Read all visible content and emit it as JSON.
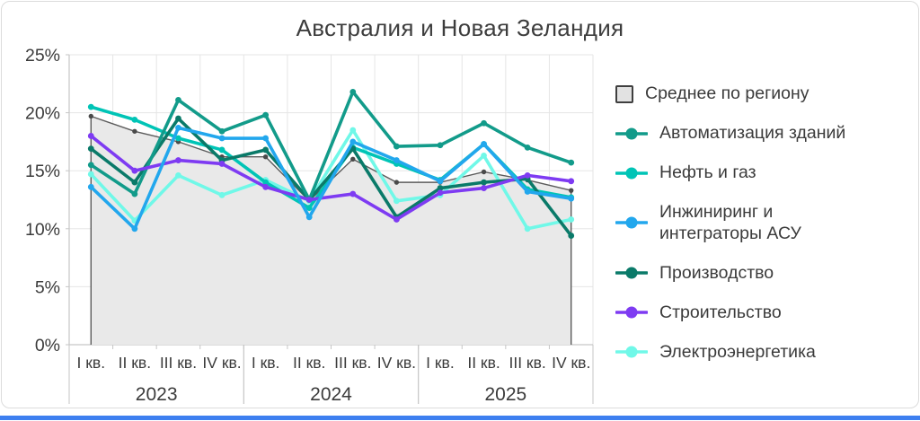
{
  "card": {
    "title": "Австралия и Новая Зеландия"
  },
  "axes": {
    "y_ticks": [
      "0%",
      "5%",
      "10%",
      "15%",
      "20%",
      "25%"
    ],
    "quarter_labels": [
      "I кв.",
      "II кв.",
      "III кв.",
      "IV кв."
    ],
    "years": [
      "2023",
      "2024",
      "2025"
    ]
  },
  "legend": {
    "items": [
      {
        "label": "Среднее по региону",
        "marker": "square",
        "color": "#e2e2e2",
        "border": "#3f3f3f"
      },
      {
        "label": "Автоматизация зданий",
        "marker": "line-dot",
        "color": "#129b8a"
      },
      {
        "label": "Нефть и газ",
        "marker": "line-dot",
        "color": "#00c4b6"
      },
      {
        "label": "Инжиниринг и\nинтеграторы АСУ",
        "marker": "line-dot",
        "color": "#22a7ed"
      },
      {
        "label": "Производство",
        "marker": "line-dot",
        "color": "#0a7a69"
      },
      {
        "label": "Строительство",
        "marker": "line-dot",
        "color": "#7e3bf2"
      },
      {
        "label": "Электроэнергетика",
        "marker": "line-dot",
        "color": "#70f8e8"
      }
    ]
  },
  "chart_data": {
    "type": "line",
    "title": "Австралия и Новая Зеландия",
    "xlabel": "",
    "ylabel": "",
    "ylim": [
      0,
      25
    ],
    "grid": true,
    "legend_position": "right",
    "categories": [
      "I кв. 2023",
      "II кв. 2023",
      "III кв. 2023",
      "IV кв. 2023",
      "I кв. 2024",
      "II кв. 2024",
      "III кв. 2024",
      "IV кв. 2024",
      "I кв. 2025",
      "II кв. 2025",
      "III кв. 2025",
      "IV кв. 2025"
    ],
    "series": [
      {
        "name": "Среднее по региону",
        "type": "area",
        "color": "#5c5c5c",
        "fill": "#e9e9e9",
        "marker_color": "#4a4a4a",
        "values": [
          19.7,
          18.4,
          17.5,
          16.2,
          16.2,
          12.4,
          16.0,
          14.0,
          14.0,
          14.9,
          14.2,
          13.3
        ]
      },
      {
        "name": "Электроэнергетика",
        "type": "line",
        "color": "#70f8e8",
        "values": [
          14.7,
          10.7,
          14.6,
          12.9,
          14.2,
          12.4,
          18.5,
          12.4,
          12.9,
          16.3,
          10.0,
          10.8
        ]
      },
      {
        "name": "Нефть и газ",
        "type": "line",
        "color": "#00c4b6",
        "values": [
          20.5,
          19.4,
          17.8,
          16.8,
          14.0,
          11.8,
          17.0,
          15.6,
          14.2,
          17.3,
          13.4,
          12.7
        ]
      },
      {
        "name": "Производство",
        "type": "line",
        "color": "#0a7a69",
        "values": [
          16.9,
          14.0,
          19.5,
          15.9,
          16.8,
          12.5,
          16.9,
          11.0,
          13.5,
          14.0,
          14.3,
          9.4
        ]
      },
      {
        "name": "Автоматизация зданий",
        "type": "line",
        "color": "#129b8a",
        "values": [
          15.5,
          13.0,
          21.1,
          18.4,
          19.8,
          12.5,
          21.8,
          17.1,
          17.2,
          19.1,
          17.0,
          15.7
        ]
      },
      {
        "name": "Строительство",
        "type": "line",
        "color": "#7e3bf2",
        "values": [
          18.0,
          15.0,
          15.9,
          15.6,
          13.6,
          12.5,
          13.0,
          10.8,
          13.1,
          13.5,
          14.6,
          14.1
        ]
      },
      {
        "name": "Инжиниринг и интеграторы АСУ",
        "type": "line",
        "color": "#22a7ed",
        "values": [
          13.6,
          10.0,
          18.7,
          17.8,
          17.8,
          11.0,
          17.5,
          15.9,
          14.1,
          17.3,
          13.2,
          12.6
        ]
      }
    ]
  },
  "theme": {
    "grid_color": "#e5e5e5",
    "axis_color": "#c6c6c6",
    "text_color": "#3b3b3b",
    "accent_bar_color": "#3d7ff0"
  }
}
